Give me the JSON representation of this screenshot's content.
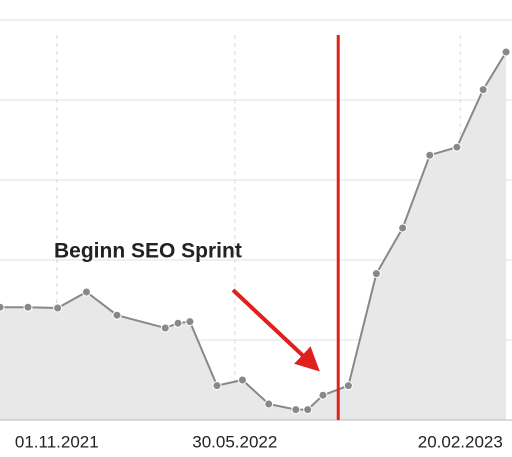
{
  "chart_data": {
    "type": "area-line",
    "x": [
      "2021-08-26",
      "2021-09-28",
      "2021-11-02",
      "2021-12-06",
      "2022-01-11",
      "2022-03-09",
      "2022-03-24",
      "2022-04-07",
      "2022-05-09",
      "2022-06-08",
      "2022-07-09",
      "2022-08-10",
      "2022-08-24",
      "2022-09-11",
      "2022-10-11",
      "2022-11-13",
      "2022-12-14",
      "2023-01-15",
      "2023-02-16",
      "2023-03-19",
      "2023-04-15"
    ],
    "values": [
      1.41,
      1.41,
      1.4,
      1.6,
      1.31,
      1.15,
      1.21,
      1.23,
      0.43,
      0.5,
      0.2,
      0.13,
      0.13,
      0.31,
      0.43,
      1.83,
      2.4,
      3.31,
      3.41,
      4.13,
      4.6
    ],
    "color": "#888888",
    "fill": "#e8e8e8",
    "xlim": [
      "2021-08-26",
      "2023-04-22"
    ],
    "xticks": [
      {
        "value": "2021-11-01",
        "label": "01.11.2021"
      },
      {
        "value": "2022-05-30",
        "label": "30.05.2022"
      },
      {
        "value": "2023-02-20",
        "label": "20.02.2023"
      }
    ],
    "ylim": [
      0,
      5
    ],
    "yticks": [
      0,
      1,
      2,
      3,
      4,
      5
    ],
    "grid": true,
    "marker": {
      "x": "2022-09-29",
      "color": "#e0201c"
    },
    "annotation": {
      "text": "Beginn SEO Sprint"
    }
  }
}
